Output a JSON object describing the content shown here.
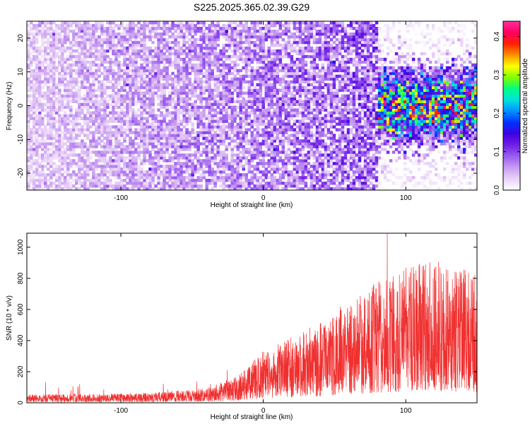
{
  "title": "S225.2025.365.02.39.G29",
  "chart_data": [
    {
      "type": "heatmap",
      "xlabel": "Height of straight line (km)",
      "ylabel": "Frequency (Hz)",
      "xlim": [
        -166,
        150
      ],
      "ylim": [
        -25,
        25
      ],
      "xticks": [
        -100,
        0,
        100
      ],
      "yticks": [
        -20,
        -10,
        0,
        10,
        20
      ],
      "colorbar": {
        "label": "Normalized spectral amplitude",
        "range": [
          0.0,
          0.44
        ],
        "ticks": [
          "0.0",
          "0.1",
          "0.2",
          "0.3",
          "0.4"
        ],
        "tick_values": [
          0.0,
          0.1,
          0.2,
          0.3,
          0.4
        ]
      },
      "colormap": [
        "#ffffff",
        "#e8d2f8",
        "#c89cf0",
        "#9a5cf0",
        "#7020e6",
        "#4000e0",
        "#0030ff",
        "#0090ff",
        "#00e0e0",
        "#00ff80",
        "#80ff00",
        "#ffff00",
        "#ff9000",
        "#ff2000",
        "#ff0060",
        "#ff30a0"
      ],
      "strong_band": {
        "x_range": [
          80,
          150
        ],
        "frequency_center": 0,
        "peak_amplitude": 0.44
      }
    },
    {
      "type": "line",
      "xlabel": "Height of straight line (km)",
      "ylabel": "SNR (10 * v/v)",
      "xlim": [
        -166,
        150
      ],
      "ylim": [
        0,
        1090
      ],
      "xticks": [
        -100,
        0,
        100
      ],
      "yticks": [
        0,
        200,
        400,
        600,
        800,
        1000
      ],
      "series": [
        {
          "color": "#f03030",
          "envelope_x": [
            -166,
            -120,
            -80,
            -40,
            -20,
            0,
            20,
            40,
            60,
            80,
            100,
            120,
            150
          ],
          "envelope_y": [
            30,
            30,
            35,
            50,
            90,
            180,
            230,
            280,
            360,
            420,
            470,
            500,
            450
          ],
          "peak": {
            "x": 87,
            "y": 1090
          }
        }
      ]
    }
  ]
}
